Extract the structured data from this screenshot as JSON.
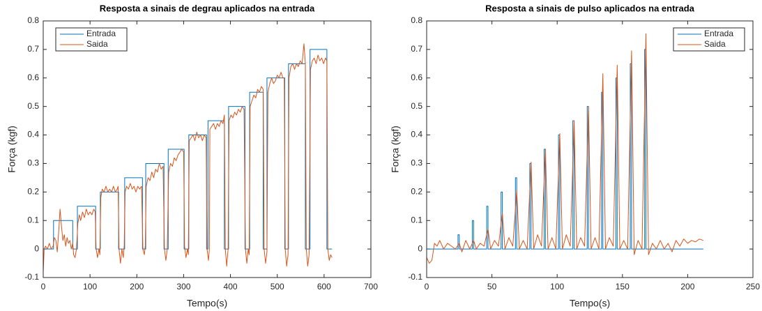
{
  "chart_data": [
    {
      "type": "line",
      "title": "Resposta a sinais de degrau aplicados na entrada",
      "xlabel": "Tempo(s)",
      "ylabel": "Força (kgf)",
      "xlim": [
        0,
        700
      ],
      "xticks": [
        0,
        100,
        200,
        300,
        400,
        500,
        600,
        700
      ],
      "ylim": [
        -0.1,
        0.8
      ],
      "yticks": [
        -0.1,
        0,
        0.1,
        0.2,
        0.3,
        0.4,
        0.5,
        0.6,
        0.7,
        0.8
      ],
      "grid": false,
      "legend": "upper left",
      "series": [
        {
          "name": "Entrada",
          "color": "#0072BD",
          "x": [
            0,
            22,
            22,
            63,
            63,
            73,
            73,
            112,
            112,
            122,
            122,
            161,
            161,
            174,
            174,
            212,
            212,
            219,
            219,
            258,
            258,
            267,
            267,
            301,
            301,
            311,
            311,
            349,
            349,
            352,
            352,
            387,
            387,
            396,
            396,
            431,
            431,
            441,
            441,
            470,
            470,
            478,
            478,
            516,
            516,
            524,
            524,
            560,
            560,
            570,
            570,
            606,
            606,
            617
          ],
          "values": [
            0,
            0,
            0.1,
            0.1,
            0,
            0,
            0.15,
            0.15,
            0,
            0,
            0.2,
            0.2,
            0,
            0,
            0.25,
            0.25,
            0,
            0,
            0.3,
            0.3,
            0,
            0,
            0.35,
            0.35,
            0,
            0,
            0.4,
            0.4,
            0,
            0,
            0.45,
            0.45,
            0,
            0,
            0.5,
            0.5,
            0,
            0,
            0.55,
            0.55,
            0,
            0,
            0.6,
            0.6,
            0,
            0,
            0.65,
            0.65,
            0,
            0,
            0.7,
            0.7,
            0,
            0
          ]
        },
        {
          "name": "Saida",
          "color": "#D95319",
          "x": [
            0,
            2,
            5,
            9,
            13,
            17,
            21,
            24,
            27,
            30,
            33,
            36,
            39,
            42,
            45,
            48,
            51,
            54,
            57,
            60,
            63,
            65,
            68,
            71,
            74,
            77,
            80,
            84,
            88,
            92,
            96,
            100,
            104,
            108,
            111,
            113,
            116,
            119,
            121,
            123,
            126,
            130,
            134,
            138,
            142,
            146,
            150,
            154,
            158,
            160,
            162,
            165,
            168,
            171,
            173,
            175,
            178,
            182,
            186,
            190,
            194,
            198,
            202,
            206,
            210,
            213,
            216,
            218,
            220,
            224,
            228,
            232,
            236,
            240,
            244,
            248,
            252,
            256,
            259,
            262,
            265,
            268,
            272,
            276,
            280,
            284,
            288,
            292,
            296,
            300,
            302,
            305,
            308,
            310,
            312,
            316,
            320,
            324,
            328,
            332,
            336,
            340,
            344,
            348,
            350,
            353,
            355,
            356,
            360,
            364,
            368,
            372,
            376,
            380,
            384,
            387,
            389,
            392,
            395,
            397,
            401,
            405,
            409,
            413,
            417,
            421,
            425,
            429,
            432,
            435,
            438,
            440,
            442,
            446,
            450,
            454,
            458,
            462,
            466,
            470,
            472,
            475,
            478,
            480,
            484,
            488,
            492,
            496,
            500,
            504,
            508,
            512,
            515,
            517,
            520,
            523,
            525,
            529,
            533,
            537,
            541,
            545,
            549,
            553,
            557,
            560,
            562,
            565,
            568,
            571,
            575,
            579,
            583,
            587,
            591,
            595,
            599,
            603,
            606,
            608,
            611,
            614,
            617
          ],
          "values": [
            -0.08,
            0,
            0.01,
            0,
            0.02,
            0,
            0.01,
            0.04,
            0.03,
            -0.01,
            0.06,
            0.14,
            0.08,
            0.03,
            0.05,
            0.01,
            0.04,
            0.02,
            0.03,
            0,
            0.02,
            -0.02,
            -0.03,
            0,
            0.09,
            0.12,
            0.1,
            0.13,
            0.11,
            0.14,
            0.12,
            0.13,
            0.12,
            0.14,
            0.13,
            0,
            -0.03,
            0,
            -0.02,
            0.18,
            0.21,
            0.2,
            0.22,
            0.2,
            0.21,
            0.2,
            0.22,
            0.2,
            0.21,
            0.22,
            0,
            -0.05,
            0,
            -0.03,
            0.01,
            0.2,
            0.22,
            0.21,
            0.23,
            0.21,
            0.22,
            0.2,
            0.22,
            0.21,
            0.22,
            0,
            -0.02,
            0.01,
            0.22,
            0.25,
            0.24,
            0.27,
            0.25,
            0.28,
            0.27,
            0.3,
            0.28,
            0.29,
            0,
            -0.04,
            0,
            0.27,
            0.3,
            0.29,
            0.32,
            0.31,
            0.33,
            0.34,
            0.35,
            0.34,
            0.01,
            -0.03,
            0,
            -0.02,
            0.38,
            0.39,
            0.4,
            0.38,
            0.41,
            0.39,
            0.4,
            0.38,
            0.4,
            0.39,
            0,
            -0.04,
            0,
            0.42,
            0.43,
            0.44,
            0.42,
            0.44,
            0.43,
            0.45,
            0.44,
            0.47,
            0,
            -0.06,
            0,
            0.45,
            0.47,
            0.46,
            0.48,
            0.47,
            0.49,
            0.48,
            0.5,
            0.49,
            0,
            -0.05,
            0,
            -0.02,
            0.5,
            0.52,
            0.54,
            0.53,
            0.56,
            0.55,
            0.57,
            0.56,
            0,
            -0.05,
            -0.01,
            0.55,
            0.58,
            0.6,
            0.58,
            0.59,
            0.61,
            0.6,
            0.62,
            0.6,
            0.6,
            0,
            -0.06,
            -0.02,
            0.6,
            0.64,
            0.65,
            0.63,
            0.65,
            0.64,
            0.66,
            0.65,
            0.72,
            0.65,
            0,
            -0.06,
            -0.02,
            0.63,
            0.66,
            0.67,
            0.65,
            0.68,
            0.66,
            0.67,
            0.65,
            0.67,
            0.66,
            0,
            -0.04,
            -0.02,
            -0.03
          ]
        }
      ]
    },
    {
      "type": "line",
      "title": "Resposta a sinais de pulso aplicados na entrada",
      "xlabel": "Tempo(s)",
      "ylabel": "Força (kgf)",
      "xlim": [
        0,
        250
      ],
      "xticks": [
        0,
        50,
        100,
        150,
        200,
        250
      ],
      "ylim": [
        -0.1,
        0.8
      ],
      "yticks": [
        -0.1,
        0,
        0.1,
        0.2,
        0.3,
        0.4,
        0.5,
        0.6,
        0.7,
        0.8
      ],
      "grid": false,
      "legend": "upper right",
      "series": [
        {
          "name": "Entrada",
          "color": "#0072BD",
          "x": [
            0,
            24,
            24,
            25,
            25,
            35,
            35,
            36,
            36,
            46,
            46,
            47,
            47,
            57,
            57,
            58,
            58,
            68,
            68,
            69,
            69,
            79,
            79,
            80,
            80,
            90,
            90,
            91,
            91,
            101,
            101,
            102,
            102,
            112,
            112,
            113,
            113,
            123,
            123,
            124,
            124,
            134,
            134,
            135,
            135,
            145,
            145,
            146,
            146,
            156,
            156,
            157,
            157,
            167,
            167,
            168,
            168,
            212
          ],
          "values": [
            0,
            0,
            0.05,
            0.05,
            0,
            0,
            0.1,
            0.1,
            0,
            0,
            0.15,
            0.15,
            0,
            0,
            0.2,
            0.2,
            0,
            0,
            0.25,
            0.25,
            0,
            0,
            0.3,
            0.3,
            0,
            0,
            0.35,
            0.35,
            0,
            0,
            0.4,
            0.4,
            0,
            0,
            0.45,
            0.45,
            0,
            0,
            0.5,
            0.5,
            0,
            0,
            0.55,
            0.55,
            0,
            0,
            0.6,
            0.6,
            0,
            0,
            0.65,
            0.65,
            0,
            0,
            0.7,
            0.7,
            0,
            0
          ]
        },
        {
          "name": "Saida",
          "color": "#D95319",
          "x": [
            0,
            2,
            4,
            6,
            8,
            10,
            13,
            16,
            19,
            22,
            25,
            27,
            30,
            33,
            36,
            38,
            41,
            44,
            47,
            49,
            52,
            55,
            58,
            60,
            63,
            66,
            69,
            71,
            74,
            77,
            80,
            82,
            85,
            88,
            91,
            93,
            96,
            99,
            102,
            104,
            107,
            110,
            113,
            115,
            118,
            121,
            124,
            126,
            129,
            132,
            135,
            137,
            140,
            143,
            146,
            148,
            151,
            154,
            157,
            159,
            162,
            165,
            168,
            170,
            173,
            176,
            179,
            182,
            185,
            188,
            191,
            194,
            197,
            200,
            203,
            206,
            209,
            212
          ],
          "values": [
            -0.03,
            -0.05,
            -0.04,
            0.02,
            0.01,
            0.03,
            0,
            0.02,
            0.01,
            0,
            0.02,
            -0.01,
            0.03,
            0,
            0.03,
            0,
            0.02,
            0.01,
            0.07,
            0,
            0.03,
            0.01,
            0.125,
            0,
            0.04,
            0.01,
            0.205,
            0,
            0.03,
            0,
            0.305,
            0,
            0.05,
            0.01,
            0.35,
            0,
            0.04,
            0,
            0.405,
            0,
            0.05,
            0.01,
            0.45,
            0,
            0.04,
            0.01,
            0.5,
            0,
            0.04,
            0,
            0.615,
            0,
            0.04,
            0.01,
            0.645,
            0,
            0.03,
            0,
            0.695,
            -0.02,
            0.03,
            0,
            0.755,
            -0.02,
            0.02,
            0,
            0.03,
            0,
            0.02,
            -0.01,
            0.03,
            0.01,
            0.035,
            0.02,
            0.03,
            0.025,
            0.035,
            0.03
          ]
        }
      ]
    }
  ]
}
